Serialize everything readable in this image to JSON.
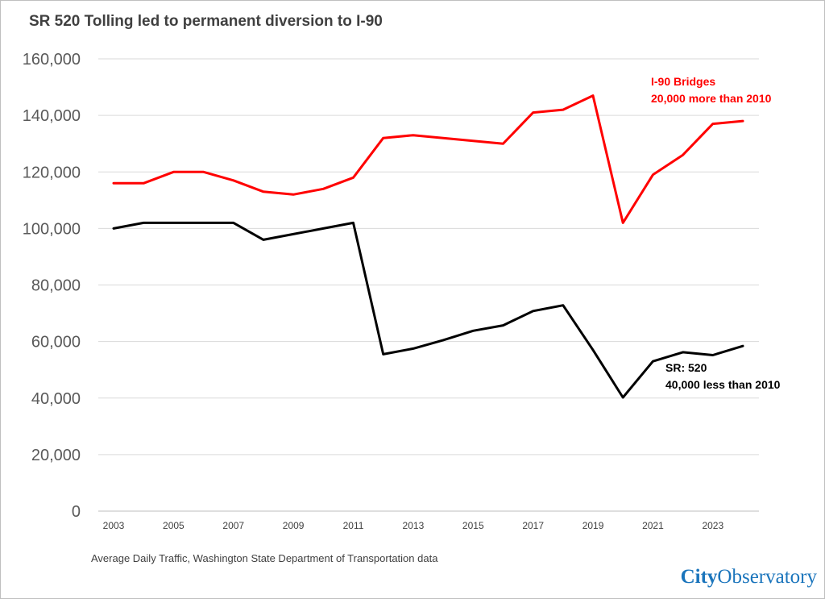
{
  "chart_data": {
    "type": "line",
    "title": "SR 520 Tolling led to permanent diversion to I-90",
    "xlabel": "",
    "ylabel": "",
    "x": [
      2003,
      2004,
      2005,
      2006,
      2007,
      2008,
      2009,
      2010,
      2011,
      2012,
      2013,
      2014,
      2015,
      2016,
      2017,
      2018,
      2019,
      2020,
      2021,
      2022,
      2023,
      2024
    ],
    "x_tick_labels": [
      "2003",
      "2005",
      "2007",
      "2009",
      "2011",
      "2013",
      "2015",
      "2017",
      "2019",
      "2021",
      "2023"
    ],
    "y_tick_labels": [
      "0",
      "20,000",
      "40,000",
      "60,000",
      "80,000",
      "100,000",
      "120,000",
      "140,000",
      "160,000"
    ],
    "ylim": [
      0,
      160000
    ],
    "grid": "horizontal",
    "series": [
      {
        "key": "i90",
        "color": "#ff0000",
        "values": [
          116000,
          116000,
          120000,
          120000,
          117000,
          113000,
          112000,
          114000,
          118000,
          132000,
          133000,
          132000,
          131000,
          130000,
          141000,
          142000,
          147000,
          102000,
          119000,
          126000,
          137000,
          138000
        ]
      },
      {
        "key": "sr520",
        "color": "#000000",
        "values": [
          100000,
          102000,
          102000,
          102000,
          102000,
          96000,
          98000,
          100000,
          102000,
          55500,
          57500,
          60500,
          63800,
          65700,
          70800,
          72800,
          57000,
          40200,
          53000,
          56200,
          55200,
          58400
        ]
      }
    ],
    "annotations": [
      {
        "key": "i90",
        "color": "#ff0000",
        "lines": [
          "I-90 Bridges",
          "20,000 more than 2010"
        ]
      },
      {
        "key": "sr520",
        "color": "#000000",
        "lines": [
          "SR: 520",
          "40,000 less than 2010"
        ]
      }
    ]
  },
  "footer": {
    "source": "Average Daily Traffic, Washington State Department of Transportation data",
    "logo_part1": "City",
    "logo_part2": "Observatory"
  }
}
